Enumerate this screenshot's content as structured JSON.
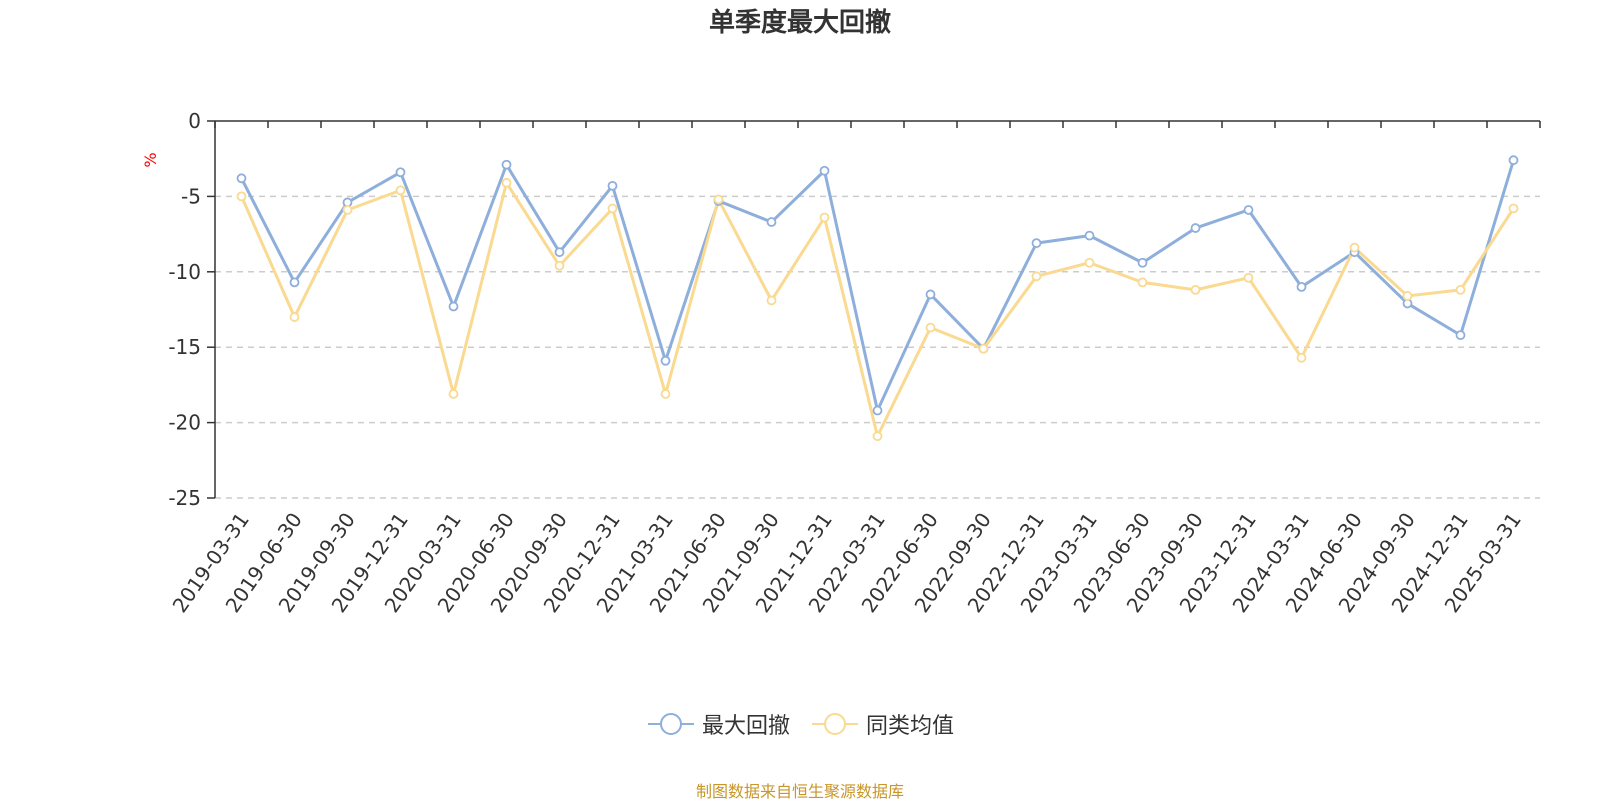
{
  "chart_data": {
    "type": "line",
    "title": "单季度最大回撤",
    "ylabel": "%",
    "xlabel": "",
    "ylim": [
      -25,
      0
    ],
    "yticks": [
      0,
      -5,
      -10,
      -15,
      -20,
      -25
    ],
    "grid": true,
    "legend_position": "bottom",
    "categories": [
      "2019-03-31",
      "2019-06-30",
      "2019-09-30",
      "2019-12-31",
      "2020-03-31",
      "2020-06-30",
      "2020-09-30",
      "2020-12-31",
      "2021-03-31",
      "2021-06-30",
      "2021-09-30",
      "2021-12-31",
      "2022-03-31",
      "2022-06-30",
      "2022-09-30",
      "2022-12-31",
      "2023-03-31",
      "2023-06-30",
      "2023-09-30",
      "2023-12-31",
      "2024-03-31",
      "2024-06-30",
      "2024-09-30",
      "2024-12-31",
      "2025-03-31"
    ],
    "series": [
      {
        "name": "最大回撤",
        "color": "#8eaedb",
        "values": [
          -3.8,
          -10.7,
          -5.4,
          -3.4,
          -12.3,
          -2.9,
          -8.7,
          -4.3,
          -15.9,
          -5.3,
          -6.7,
          -3.3,
          -19.2,
          -11.5,
          -15.1,
          -8.1,
          -7.6,
          -9.4,
          -7.1,
          -5.9,
          -11.0,
          -8.7,
          -12.1,
          -14.2,
          -2.6
        ]
      },
      {
        "name": "同类均值",
        "color": "#fad990",
        "values": [
          -5.0,
          -13.0,
          -5.9,
          -4.6,
          -18.1,
          -4.1,
          -9.6,
          -5.8,
          -18.1,
          -5.2,
          -11.9,
          -6.4,
          -20.9,
          -13.7,
          -15.1,
          -10.3,
          -9.4,
          -10.7,
          -11.2,
          -10.4,
          -15.7,
          -8.4,
          -11.6,
          -11.2,
          -5.8
        ]
      }
    ]
  },
  "source_text": "制图数据来自恒生聚源数据库"
}
